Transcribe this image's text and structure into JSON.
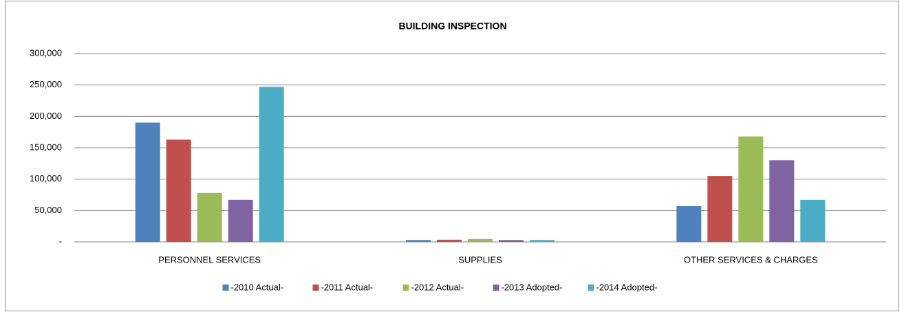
{
  "chart_data": {
    "type": "bar",
    "title": "BUILDING INSPECTION",
    "categories": [
      "PERSONNEL SERVICES",
      "SUPPLIES",
      "OTHER SERVICES & CHARGES"
    ],
    "series": [
      {
        "name": "-2010 Actual-",
        "color": "#4f81bd",
        "values": [
          190000,
          3000,
          57000
        ]
      },
      {
        "name": "-2011 Actual-",
        "color": "#c0504d",
        "values": [
          163000,
          3500,
          105000
        ]
      },
      {
        "name": "-2012 Actual-",
        "color": "#9bbb59",
        "values": [
          78000,
          4500,
          168000
        ]
      },
      {
        "name": "-2013 Adopted-",
        "color": "#8064a2",
        "values": [
          67000,
          3000,
          130000
        ]
      },
      {
        "name": "-2014 Adopted-",
        "color": "#4bacc6",
        "values": [
          247000,
          3000,
          67000
        ]
      }
    ],
    "ylim": [
      0,
      300000
    ],
    "yticks": [
      {
        "value": 0,
        "label": "-"
      },
      {
        "value": 50000,
        "label": "50,000"
      },
      {
        "value": 100000,
        "label": "100,000"
      },
      {
        "value": 150000,
        "label": "150,000"
      },
      {
        "value": 200000,
        "label": "200,000"
      },
      {
        "value": 250000,
        "label": "250,000"
      },
      {
        "value": 300000,
        "label": "300,000"
      }
    ],
    "grid": true,
    "legend": "bottom"
  }
}
